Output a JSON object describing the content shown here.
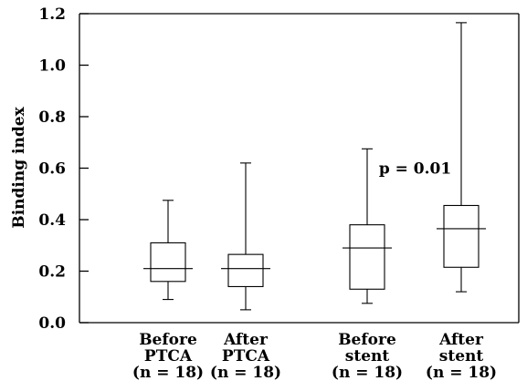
{
  "chart_data": {
    "type": "boxplot",
    "ylabel": "Binding index",
    "ylim": [
      0,
      1.2
    ],
    "yticks": [
      "0.0",
      "0.2",
      "0.4",
      "0.6",
      "0.8",
      "1.0",
      "1.2"
    ],
    "grid": false,
    "groups": [
      {
        "label_lines": [
          "Before",
          "PTCA",
          "(n = 18)"
        ],
        "min": 0.09,
        "q1": 0.16,
        "median": 0.21,
        "q3": 0.31,
        "max": 0.475
      },
      {
        "label_lines": [
          "After",
          "PTCA",
          "(n = 18)"
        ],
        "min": 0.05,
        "q1": 0.14,
        "median": 0.21,
        "q3": 0.265,
        "max": 0.62
      },
      {
        "label_lines": [
          "Before",
          "stent",
          "(n = 18)"
        ],
        "min": 0.075,
        "q1": 0.13,
        "median": 0.29,
        "q3": 0.38,
        "max": 0.675
      },
      {
        "label_lines": [
          "After",
          "stent",
          "(n = 18)"
        ],
        "min": 0.12,
        "q1": 0.215,
        "median": 0.365,
        "q3": 0.455,
        "max": 1.165
      }
    ],
    "annotations": [
      {
        "text": "p = 0.01",
        "x_between_groups": [
          3,
          4
        ],
        "y": 0.6
      }
    ]
  }
}
